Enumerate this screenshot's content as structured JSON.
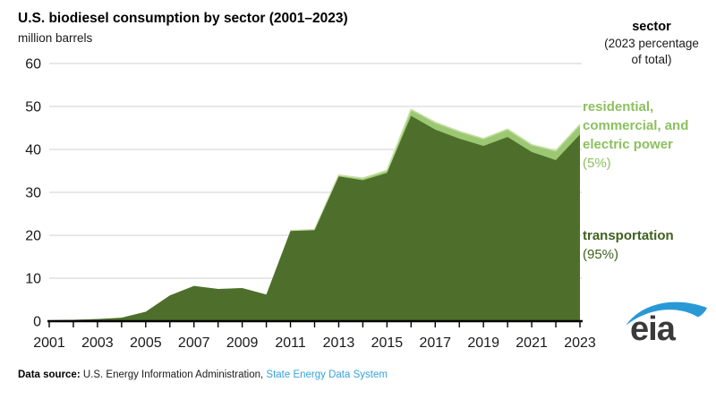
{
  "header": {
    "title": "U.S. biodiesel consumption by sector (2001–2023)",
    "subtitle": "million barrels"
  },
  "legend": {
    "header_line1": "sector",
    "header_line2": "(2023 percentage",
    "header_line3": "of total)",
    "residential_line1": "residential,",
    "residential_line2": "commercial, and",
    "residential_line3": "electric power",
    "residential_pct": "(5%)",
    "transportation_label": "transportation",
    "transportation_pct": "(95%)"
  },
  "footer": {
    "label": "Data source:",
    "text": " U.S. Energy Information Administration, ",
    "link": "State Energy Data System"
  },
  "logo": {
    "text": "eia"
  },
  "colors": {
    "transportation_fill": "#4d6f2b",
    "residential_fill": "#9cc873",
    "residential_edge": "#c6e0a4",
    "gridline": "#d9d9d9",
    "axis": "#000000",
    "link_blue": "#35a3dc",
    "logo_blue": "#2999d6",
    "residential_text": "#8cc05f",
    "transportation_text": "#3f611e"
  },
  "chart_data": {
    "type": "area",
    "stacked": true,
    "title": "U.S. biodiesel consumption by sector (2001–2023)",
    "ylabel": "million barrels",
    "xlabel": "",
    "grid": "horizontal",
    "legend_position": "right",
    "ylim": [
      0,
      60
    ],
    "yticks": [
      0,
      10,
      20,
      30,
      40,
      50,
      60
    ],
    "x": [
      2001,
      2002,
      2003,
      2004,
      2005,
      2006,
      2007,
      2008,
      2009,
      2010,
      2011,
      2012,
      2013,
      2014,
      2015,
      2016,
      2017,
      2018,
      2019,
      2020,
      2021,
      2022,
      2023
    ],
    "xtick_labels": [
      2001,
      2003,
      2005,
      2007,
      2009,
      2011,
      2013,
      2015,
      2017,
      2019,
      2021,
      2023
    ],
    "series": [
      {
        "name": "transportation",
        "pct_2023": "95%",
        "values": [
          0.2,
          0.3,
          0.5,
          0.8,
          2.2,
          6.0,
          8.2,
          7.5,
          7.7,
          6.2,
          21.0,
          21.2,
          33.7,
          32.8,
          34.5,
          47.8,
          44.6,
          42.5,
          40.8,
          42.9,
          39.4,
          37.5,
          43.5
        ]
      },
      {
        "name": "residential, commercial, and electric power",
        "pct_2023": "5%",
        "values": [
          0,
          0,
          0,
          0,
          0,
          0,
          0,
          0,
          0,
          0,
          0.1,
          0.1,
          0.3,
          0.5,
          0.6,
          1.5,
          1.7,
          1.7,
          1.7,
          1.8,
          1.7,
          2.2,
          2.3
        ]
      }
    ]
  }
}
